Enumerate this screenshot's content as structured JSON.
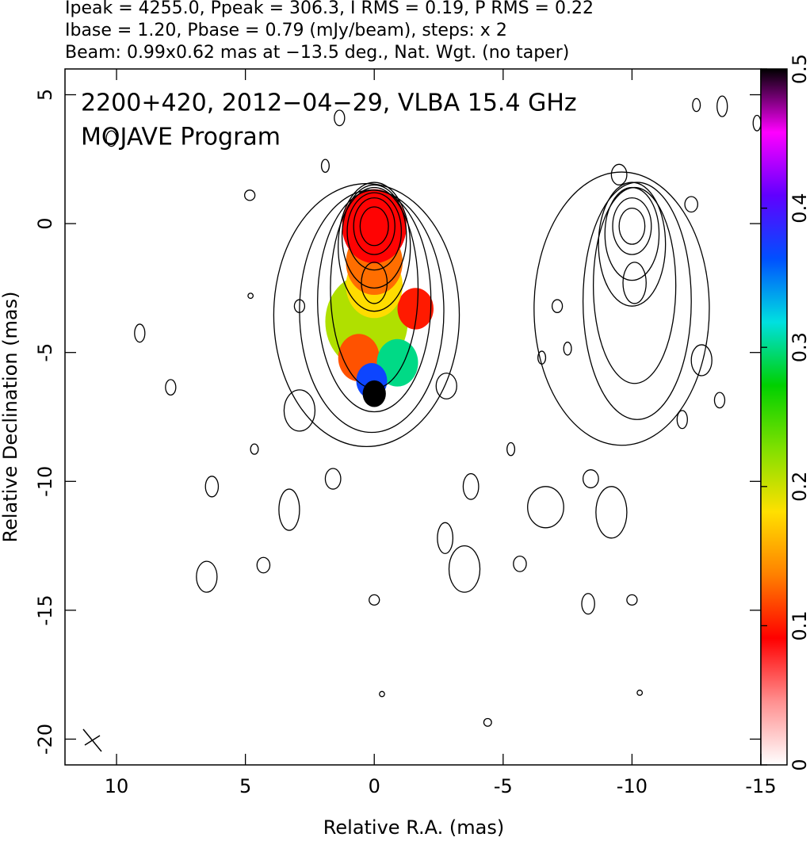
{
  "chart_data": {
    "type": "contour",
    "header": [
      "Ipeak = 4255.0, Ppeak = 306.3, I RMS = 0.19, P RMS = 0.22",
      "Ibase = 1.20, Pbase = 0.79 (mJy/beam), steps: x 2",
      "Beam: 0.99x0.62 mas at −13.5 deg., Nat. Wgt. (no taper)"
    ],
    "annotations": [
      "2200+420, 2012−04−29, VLBA 15.4 GHz",
      "MOJAVE Program"
    ],
    "xlabel": "Relative R.A. (mas)",
    "ylabel": "Relative Declination (mas)",
    "xlim": [
      12,
      -15
    ],
    "ylim": [
      -21,
      6
    ],
    "xticks": [
      10,
      5,
      0,
      -5,
      -10,
      -15
    ],
    "yticks": [
      5,
      0,
      -5,
      -10,
      -15,
      -20
    ],
    "colorbar": {
      "lim": [
        0,
        0.5
      ],
      "ticks": [
        0,
        0.1,
        0.2,
        0.3,
        0.4,
        0.5
      ],
      "colors": [
        "#ffffff",
        "#ff9090",
        "#ff0000",
        "#ff8000",
        "#ffe000",
        "#80e000",
        "#00d000",
        "#00e0e0",
        "#0050ff",
        "#6000ff",
        "#ff00ff",
        "#000000"
      ]
    },
    "polarization": [
      {
        "x": 0.3,
        "y": -3.8,
        "r": 1.6,
        "value": 0.21
      },
      {
        "x": -1.6,
        "y": -3.3,
        "r": 0.7,
        "value": 0.1
      },
      {
        "x": 0.6,
        "y": -5.2,
        "r": 0.8,
        "value": 0.12
      },
      {
        "x": -0.9,
        "y": -5.4,
        "r": 0.8,
        "value": 0.3
      },
      {
        "x": 0,
        "y": -2.4,
        "r": 1.1,
        "value": 0.18
      },
      {
        "x": 0,
        "y": -1.5,
        "r": 1.1,
        "value": 0.13
      },
      {
        "x": 0,
        "y": -0.1,
        "r": 1.25,
        "value": 0.09
      },
      {
        "x": 0.1,
        "y": -6.1,
        "r": 0.6,
        "value": 0.37
      },
      {
        "x": 0,
        "y": -6.6,
        "r": 0.45,
        "value": 0.5
      }
    ],
    "contours": [
      {
        "x": 0.3,
        "y": -3.55,
        "rx": 3.6,
        "ry": 5.1
      },
      {
        "x": 0.1,
        "y": -3.4,
        "rx": 2.8,
        "ry": 4.7
      },
      {
        "x": 0,
        "y": -3.0,
        "rx": 2.2,
        "ry": 4.3
      },
      {
        "x": 0,
        "y": -2.5,
        "rx": 1.7,
        "ry": 3.9
      },
      {
        "x": 0,
        "y": -0.9,
        "rx": 1.4,
        "ry": 2.5
      },
      {
        "x": 0,
        "y": -0.5,
        "rx": 1.25,
        "ry": 2.0
      },
      {
        "x": 0,
        "y": -0.3,
        "rx": 1.05,
        "ry": 1.5
      },
      {
        "x": 0,
        "y": -0.1,
        "rx": 0.8,
        "ry": 1.1
      },
      {
        "x": 0,
        "y": -0.1,
        "rx": 0.55,
        "ry": 0.75
      },
      {
        "x": 0,
        "y": -2.3,
        "rx": 0.5,
        "ry": 0.8
      },
      {
        "x": -9.6,
        "y": -3.3,
        "rx": 3.4,
        "ry": 5.3
      },
      {
        "x": -10.2,
        "y": -3.0,
        "rx": 2.1,
        "ry": 4.6
      },
      {
        "x": -10.1,
        "y": -2.4,
        "rx": 1.6,
        "ry": 3.8
      },
      {
        "x": -10,
        "y": -0.8,
        "rx": 1.3,
        "ry": 2.4
      },
      {
        "x": -10,
        "y": -0.4,
        "rx": 1.05,
        "ry": 1.8
      },
      {
        "x": -10,
        "y": -0.1,
        "rx": 0.75,
        "ry": 1.1
      },
      {
        "x": -10,
        "y": -0.1,
        "rx": 0.5,
        "ry": 0.7
      },
      {
        "x": -10.1,
        "y": -2.3,
        "rx": 0.45,
        "ry": 0.8
      },
      {
        "x": 4.83,
        "y": 1.1,
        "rx": 0.2,
        "ry": 0.2
      },
      {
        "x": 1.9,
        "y": 2.24,
        "rx": 0.15,
        "ry": 0.25
      },
      {
        "x": 1.35,
        "y": 4.1,
        "rx": 0.2,
        "ry": 0.3
      },
      {
        "x": 10.2,
        "y": 3.3,
        "rx": 0.2,
        "ry": 0.3
      },
      {
        "x": 2.9,
        "y": -3.2,
        "rx": 0.2,
        "ry": 0.25
      },
      {
        "x": 4.8,
        "y": -2.8,
        "rx": 0.1,
        "ry": 0.1
      },
      {
        "x": 7.9,
        "y": -6.35,
        "rx": 0.2,
        "ry": 0.3
      },
      {
        "x": 2.9,
        "y": -7.25,
        "rx": 0.6,
        "ry": 0.8
      },
      {
        "x": -2.8,
        "y": -6.3,
        "rx": 0.4,
        "ry": 0.5
      },
      {
        "x": 6.3,
        "y": -10.2,
        "rx": 0.25,
        "ry": 0.4
      },
      {
        "x": 3.3,
        "y": -11.1,
        "rx": 0.4,
        "ry": 0.8
      },
      {
        "x": 1.6,
        "y": -9.9,
        "rx": 0.3,
        "ry": 0.4
      },
      {
        "x": 4.65,
        "y": -8.75,
        "rx": 0.15,
        "ry": 0.2
      },
      {
        "x": 6.5,
        "y": -13.7,
        "rx": 0.4,
        "ry": 0.6
      },
      {
        "x": 4.3,
        "y": -13.25,
        "rx": 0.25,
        "ry": 0.3
      },
      {
        "x": -3.75,
        "y": -10.2,
        "rx": 0.3,
        "ry": 0.5
      },
      {
        "x": -3.5,
        "y": -13.4,
        "rx": 0.6,
        "ry": 0.9
      },
      {
        "x": 0,
        "y": -14.6,
        "rx": 0.2,
        "ry": 0.2
      },
      {
        "x": -5.3,
        "y": -8.75,
        "rx": 0.15,
        "ry": 0.25
      },
      {
        "x": -5.65,
        "y": -13.2,
        "rx": 0.25,
        "ry": 0.3
      },
      {
        "x": -6.65,
        "y": -11,
        "rx": 0.7,
        "ry": 0.8
      },
      {
        "x": -8.4,
        "y": -9.9,
        "rx": 0.3,
        "ry": 0.35
      },
      {
        "x": -9.2,
        "y": -11.2,
        "rx": 0.6,
        "ry": 1
      },
      {
        "x": -10,
        "y": -14.6,
        "rx": 0.2,
        "ry": 0.2
      },
      {
        "x": -7.1,
        "y": -3.2,
        "rx": 0.2,
        "ry": 0.25
      },
      {
        "x": -7.5,
        "y": -4.85,
        "rx": 0.15,
        "ry": 0.25
      },
      {
        "x": -6.5,
        "y": -5.2,
        "rx": 0.15,
        "ry": 0.25
      },
      {
        "x": -12.3,
        "y": 0.75,
        "rx": 0.25,
        "ry": 0.3
      },
      {
        "x": -12.5,
        "y": 4.6,
        "rx": 0.15,
        "ry": 0.25
      },
      {
        "x": -13.5,
        "y": 4.55,
        "rx": 0.2,
        "ry": 0.4
      },
      {
        "x": -14.85,
        "y": 3.9,
        "rx": 0.15,
        "ry": 0.3
      },
      {
        "x": -12.7,
        "y": -5.3,
        "rx": 0.4,
        "ry": 0.6
      },
      {
        "x": -11.95,
        "y": -7.6,
        "rx": 0.2,
        "ry": 0.35
      },
      {
        "x": -13.4,
        "y": -6.85,
        "rx": 0.2,
        "ry": 0.3
      },
      {
        "x": -2.75,
        "y": -12.2,
        "rx": 0.3,
        "ry": 0.6
      },
      {
        "x": -8.3,
        "y": -14.75,
        "rx": 0.25,
        "ry": 0.4
      },
      {
        "x": -4.4,
        "y": -19.35,
        "rx": 0.15,
        "ry": 0.15
      },
      {
        "x": -0.3,
        "y": -18.25,
        "rx": 0.1,
        "ry": 0.1
      },
      {
        "x": -10.3,
        "y": -18.2,
        "rx": 0.1,
        "ry": 0.1
      },
      {
        "x": 9.1,
        "y": -4.25,
        "rx": 0.2,
        "ry": 0.35
      },
      {
        "x": -9.5,
        "y": 1.9,
        "rx": 0.3,
        "ry": 0.4
      }
    ]
  }
}
